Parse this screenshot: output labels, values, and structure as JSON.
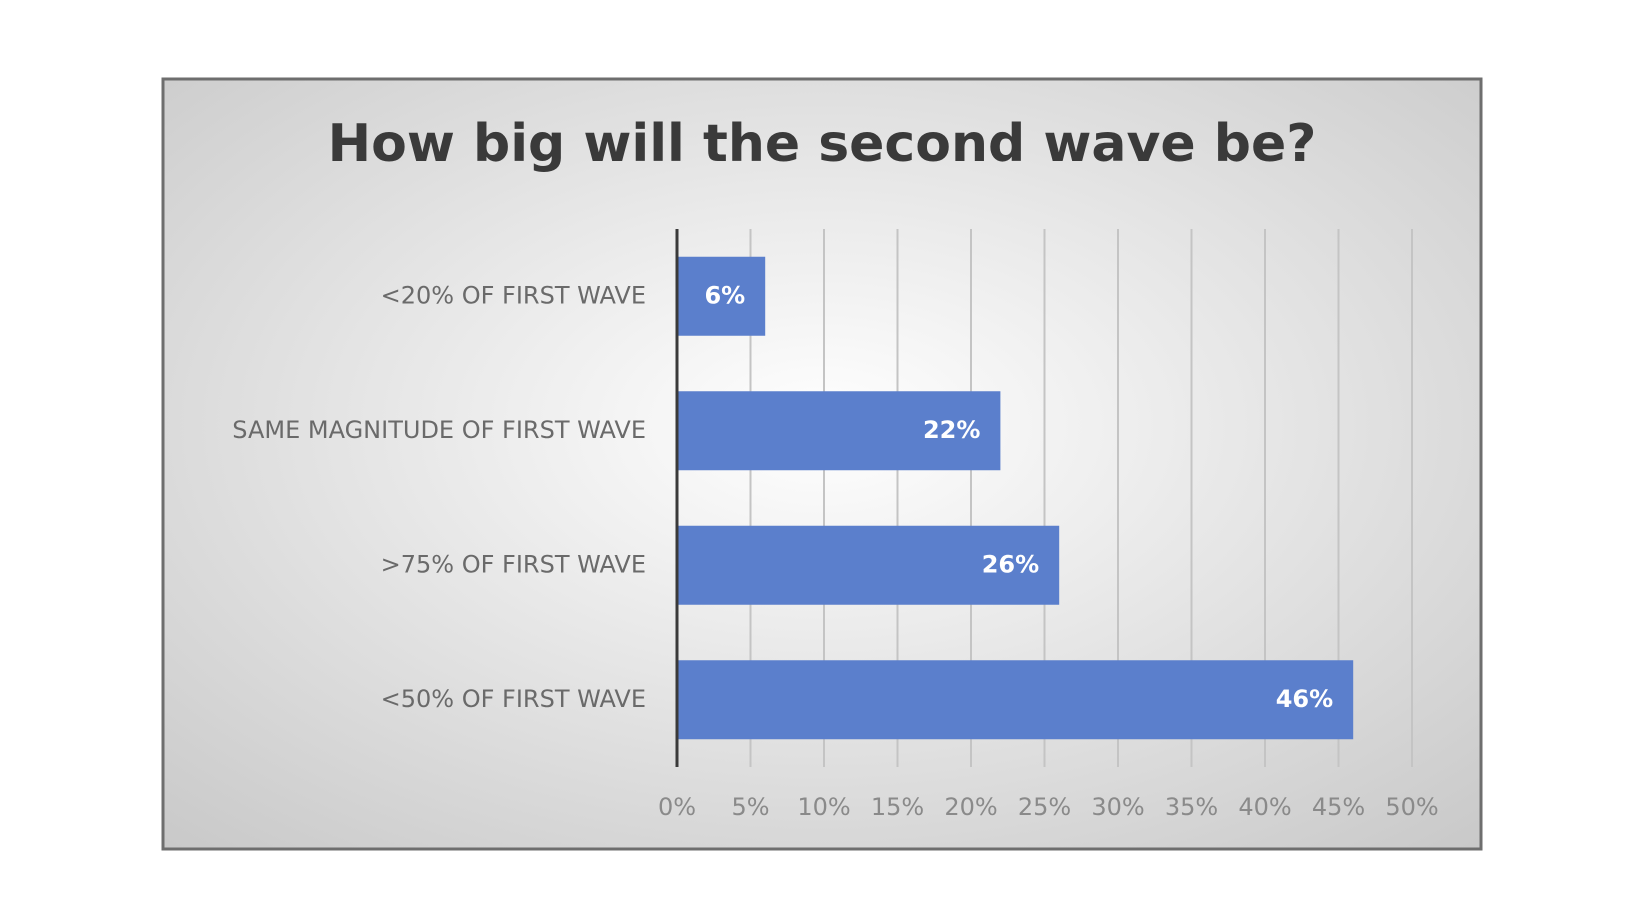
{
  "chart_data": {
    "type": "bar",
    "orientation": "horizontal",
    "title": "How big will the second wave be?",
    "categories": [
      "<20% OF FIRST WAVE",
      "SAME MAGNITUDE OF FIRST WAVE",
      ">75% OF FIRST WAVE",
      "<50% OF FIRST WAVE"
    ],
    "values": [
      6,
      22,
      26,
      46
    ],
    "value_labels": [
      "6%",
      "22%",
      "26%",
      "46%"
    ],
    "color": "#5b7fcc",
    "xlim": [
      0,
      50
    ],
    "xticks": [
      {
        "value": 0,
        "label": "0%"
      },
      {
        "value": 5,
        "label": "5%"
      },
      {
        "value": 10,
        "label": "10%"
      },
      {
        "value": 15,
        "label": "15%"
      },
      {
        "value": 20,
        "label": "20%"
      },
      {
        "value": 25,
        "label": "25%"
      },
      {
        "value": 30,
        "label": "30%"
      },
      {
        "value": 35,
        "label": "35%"
      },
      {
        "value": 40,
        "label": "40%"
      },
      {
        "value": 45,
        "label": "45%"
      },
      {
        "value": 50,
        "label": "50%"
      }
    ],
    "grid": true
  }
}
